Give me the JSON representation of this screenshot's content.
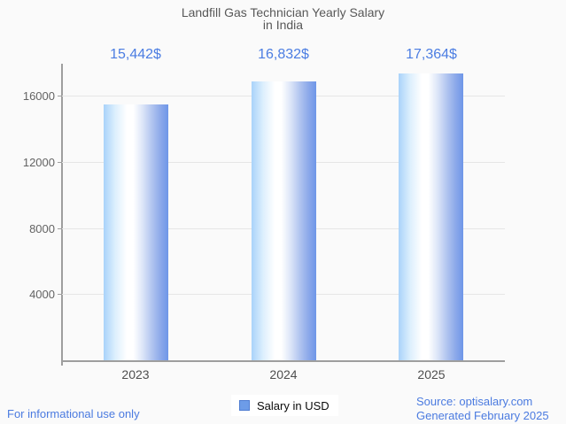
{
  "chart_data": {
    "type": "bar",
    "title": "Landfill Gas Technician Yearly Salary in India",
    "title_lines": [
      "Landfill Gas Technician Yearly Salary",
      "in India"
    ],
    "categories": [
      "2023",
      "2024",
      "2025"
    ],
    "series": [
      {
        "name": "Salary in USD",
        "values": [
          15442,
          16832,
          17364
        ]
      }
    ],
    "value_labels": [
      "15,442$",
      "16,832$",
      "17,364$"
    ],
    "xlabel": "",
    "ylabel": "",
    "yticks": [
      4000,
      8000,
      12000,
      16000
    ],
    "ytick_labels": [
      "4000",
      "8000",
      "12000",
      "16000"
    ],
    "ylim": [
      0,
      17980
    ],
    "grid": true,
    "legend_position": "bottom-center"
  },
  "legend": {
    "label": "Salary in USD",
    "swatch_color": "#6d9ce8"
  },
  "footer": {
    "disclaimer": "For informational use only",
    "source": "Source: optisalary.com",
    "generated": "Generated February 2025"
  },
  "colors": {
    "background": "#fafafa",
    "accent_blue": "#4b7de2",
    "bar_gradient_left": "#a9d3fa",
    "bar_gradient_mid": "#ffffff",
    "bar_gradient_right": "#6e96e8",
    "axis": "#9e9e9e",
    "gridline": "#e6e6e6",
    "title_text": "#585858",
    "tick_text": "#636363"
  }
}
